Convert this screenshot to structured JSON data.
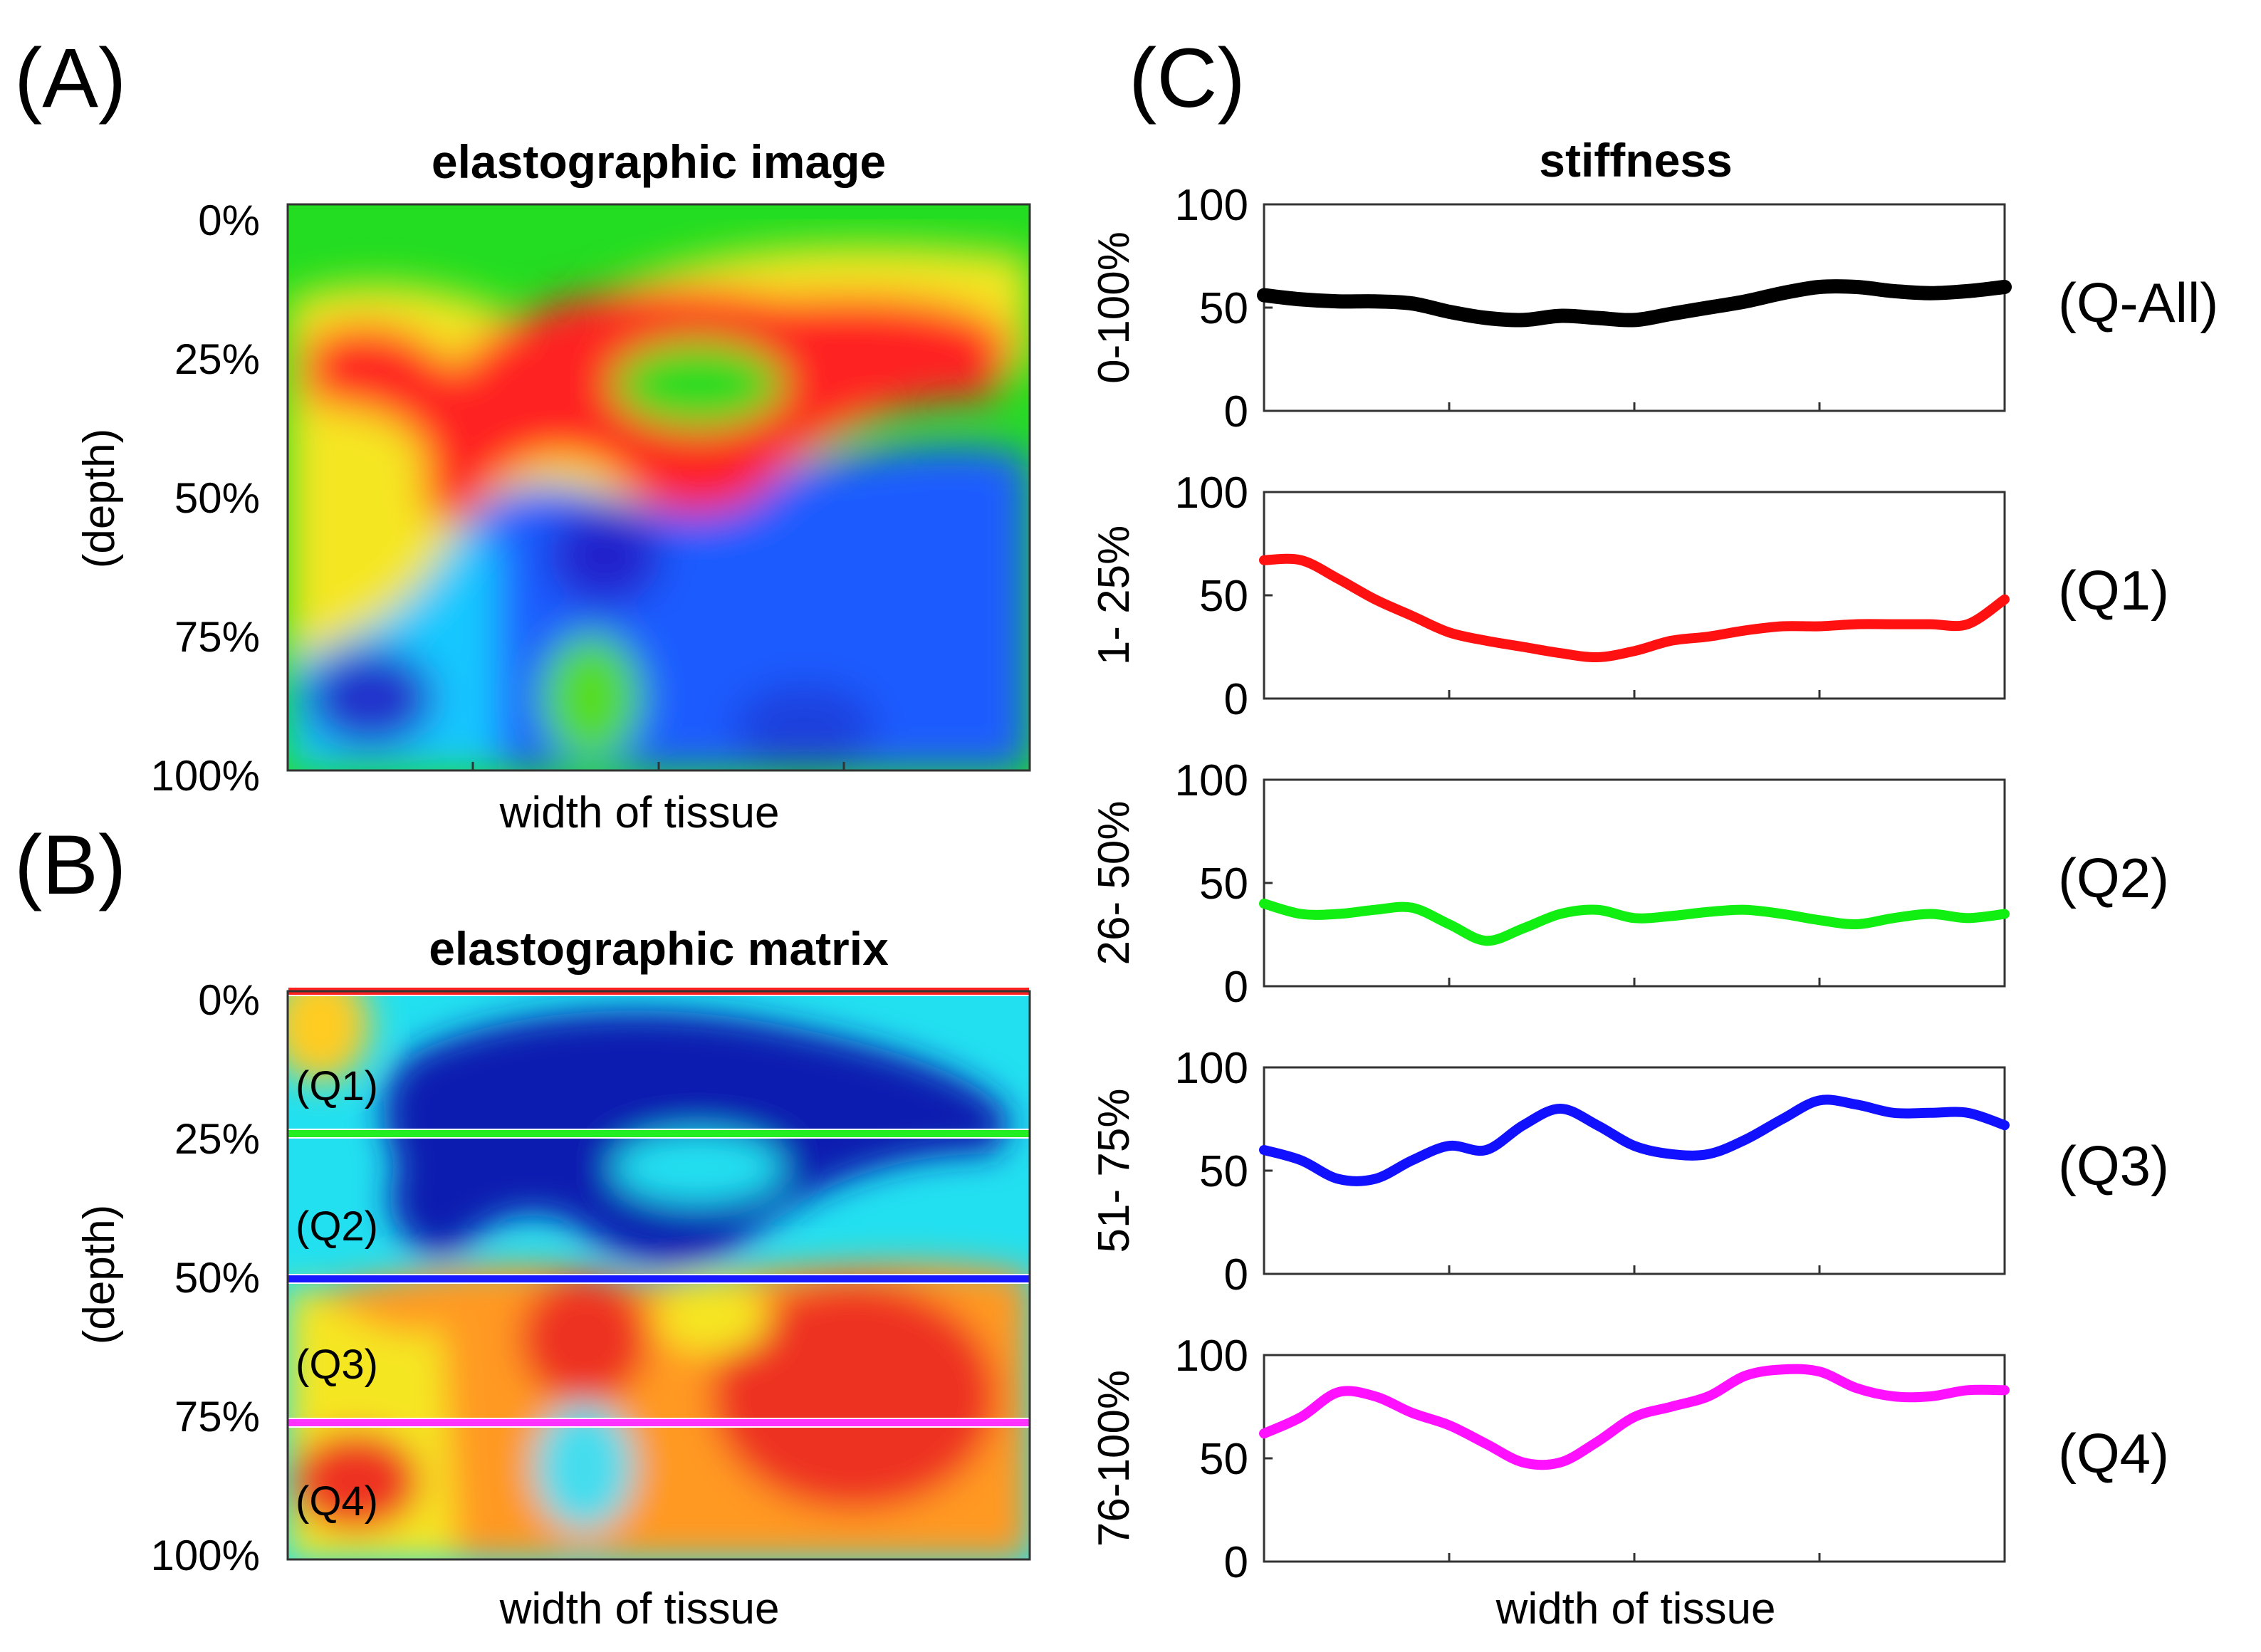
{
  "panels": {
    "a": {
      "letter": "(A)",
      "title": "elastographic image",
      "ylabel": "(depth)",
      "xlabel": "width of tissue",
      "yticks": [
        "0%",
        "25%",
        "50%",
        "75%",
        "100%"
      ]
    },
    "b": {
      "letter": "(B)",
      "title": "elastographic matrix",
      "ylabel": "(depth)",
      "xlabel": "width of tissue",
      "yticks": [
        "0%",
        "25%",
        "50%",
        "75%",
        "100%"
      ],
      "quadrant_labels": [
        "(Q1)",
        "(Q2)",
        "(Q3)",
        "(Q4)"
      ],
      "divider_colors": [
        "#ff2020",
        "#22ee22",
        "#1818ff",
        "#ff33ff"
      ]
    },
    "c": {
      "letter": "(C)",
      "title": "stiffness",
      "xlabel": "width of tissue"
    }
  },
  "chart_data": {
    "type": "line",
    "title": "stiffness",
    "xlabel": "width of tissue",
    "ylim": [
      0,
      100
    ],
    "yticks": [
      0,
      50,
      100
    ],
    "x": [
      0,
      5,
      10,
      15,
      20,
      25,
      30,
      35,
      40,
      45,
      50,
      55,
      60,
      65,
      70,
      75,
      80,
      85,
      90,
      95,
      100
    ],
    "series": [
      {
        "name": "(Q-All)",
        "range_label": "0-100%",
        "color": "#000000",
        "values": [
          56,
          54,
          53,
          53,
          52,
          48,
          45,
          44,
          46,
          45,
          44,
          47,
          50,
          53,
          57,
          60,
          60,
          58,
          57,
          58,
          60
        ]
      },
      {
        "name": "(Q1)",
        "range_label": "1- 25%",
        "color": "#ff1111",
        "values": [
          67,
          67,
          58,
          48,
          40,
          32,
          28,
          25,
          22,
          20,
          23,
          28,
          30,
          33,
          35,
          35,
          36,
          36,
          36,
          36,
          48
        ]
      },
      {
        "name": "(Q2)",
        "range_label": "26- 50%",
        "color": "#11ee11",
        "values": [
          40,
          35,
          35,
          37,
          38,
          30,
          22,
          28,
          35,
          37,
          33,
          34,
          36,
          37,
          35,
          32,
          30,
          33,
          35,
          33,
          35
        ]
      },
      {
        "name": "(Q3)",
        "range_label": "51- 75%",
        "color": "#1111ff",
        "values": [
          60,
          55,
          46,
          46,
          55,
          62,
          60,
          72,
          80,
          72,
          62,
          58,
          58,
          65,
          75,
          84,
          82,
          78,
          78,
          78,
          72
        ]
      },
      {
        "name": "(Q4)",
        "range_label": "76-100%",
        "color": "#ff11ff",
        "values": [
          62,
          70,
          82,
          80,
          72,
          66,
          57,
          48,
          48,
          58,
          70,
          75,
          80,
          90,
          93,
          92,
          84,
          80,
          80,
          83,
          83
        ]
      }
    ]
  }
}
